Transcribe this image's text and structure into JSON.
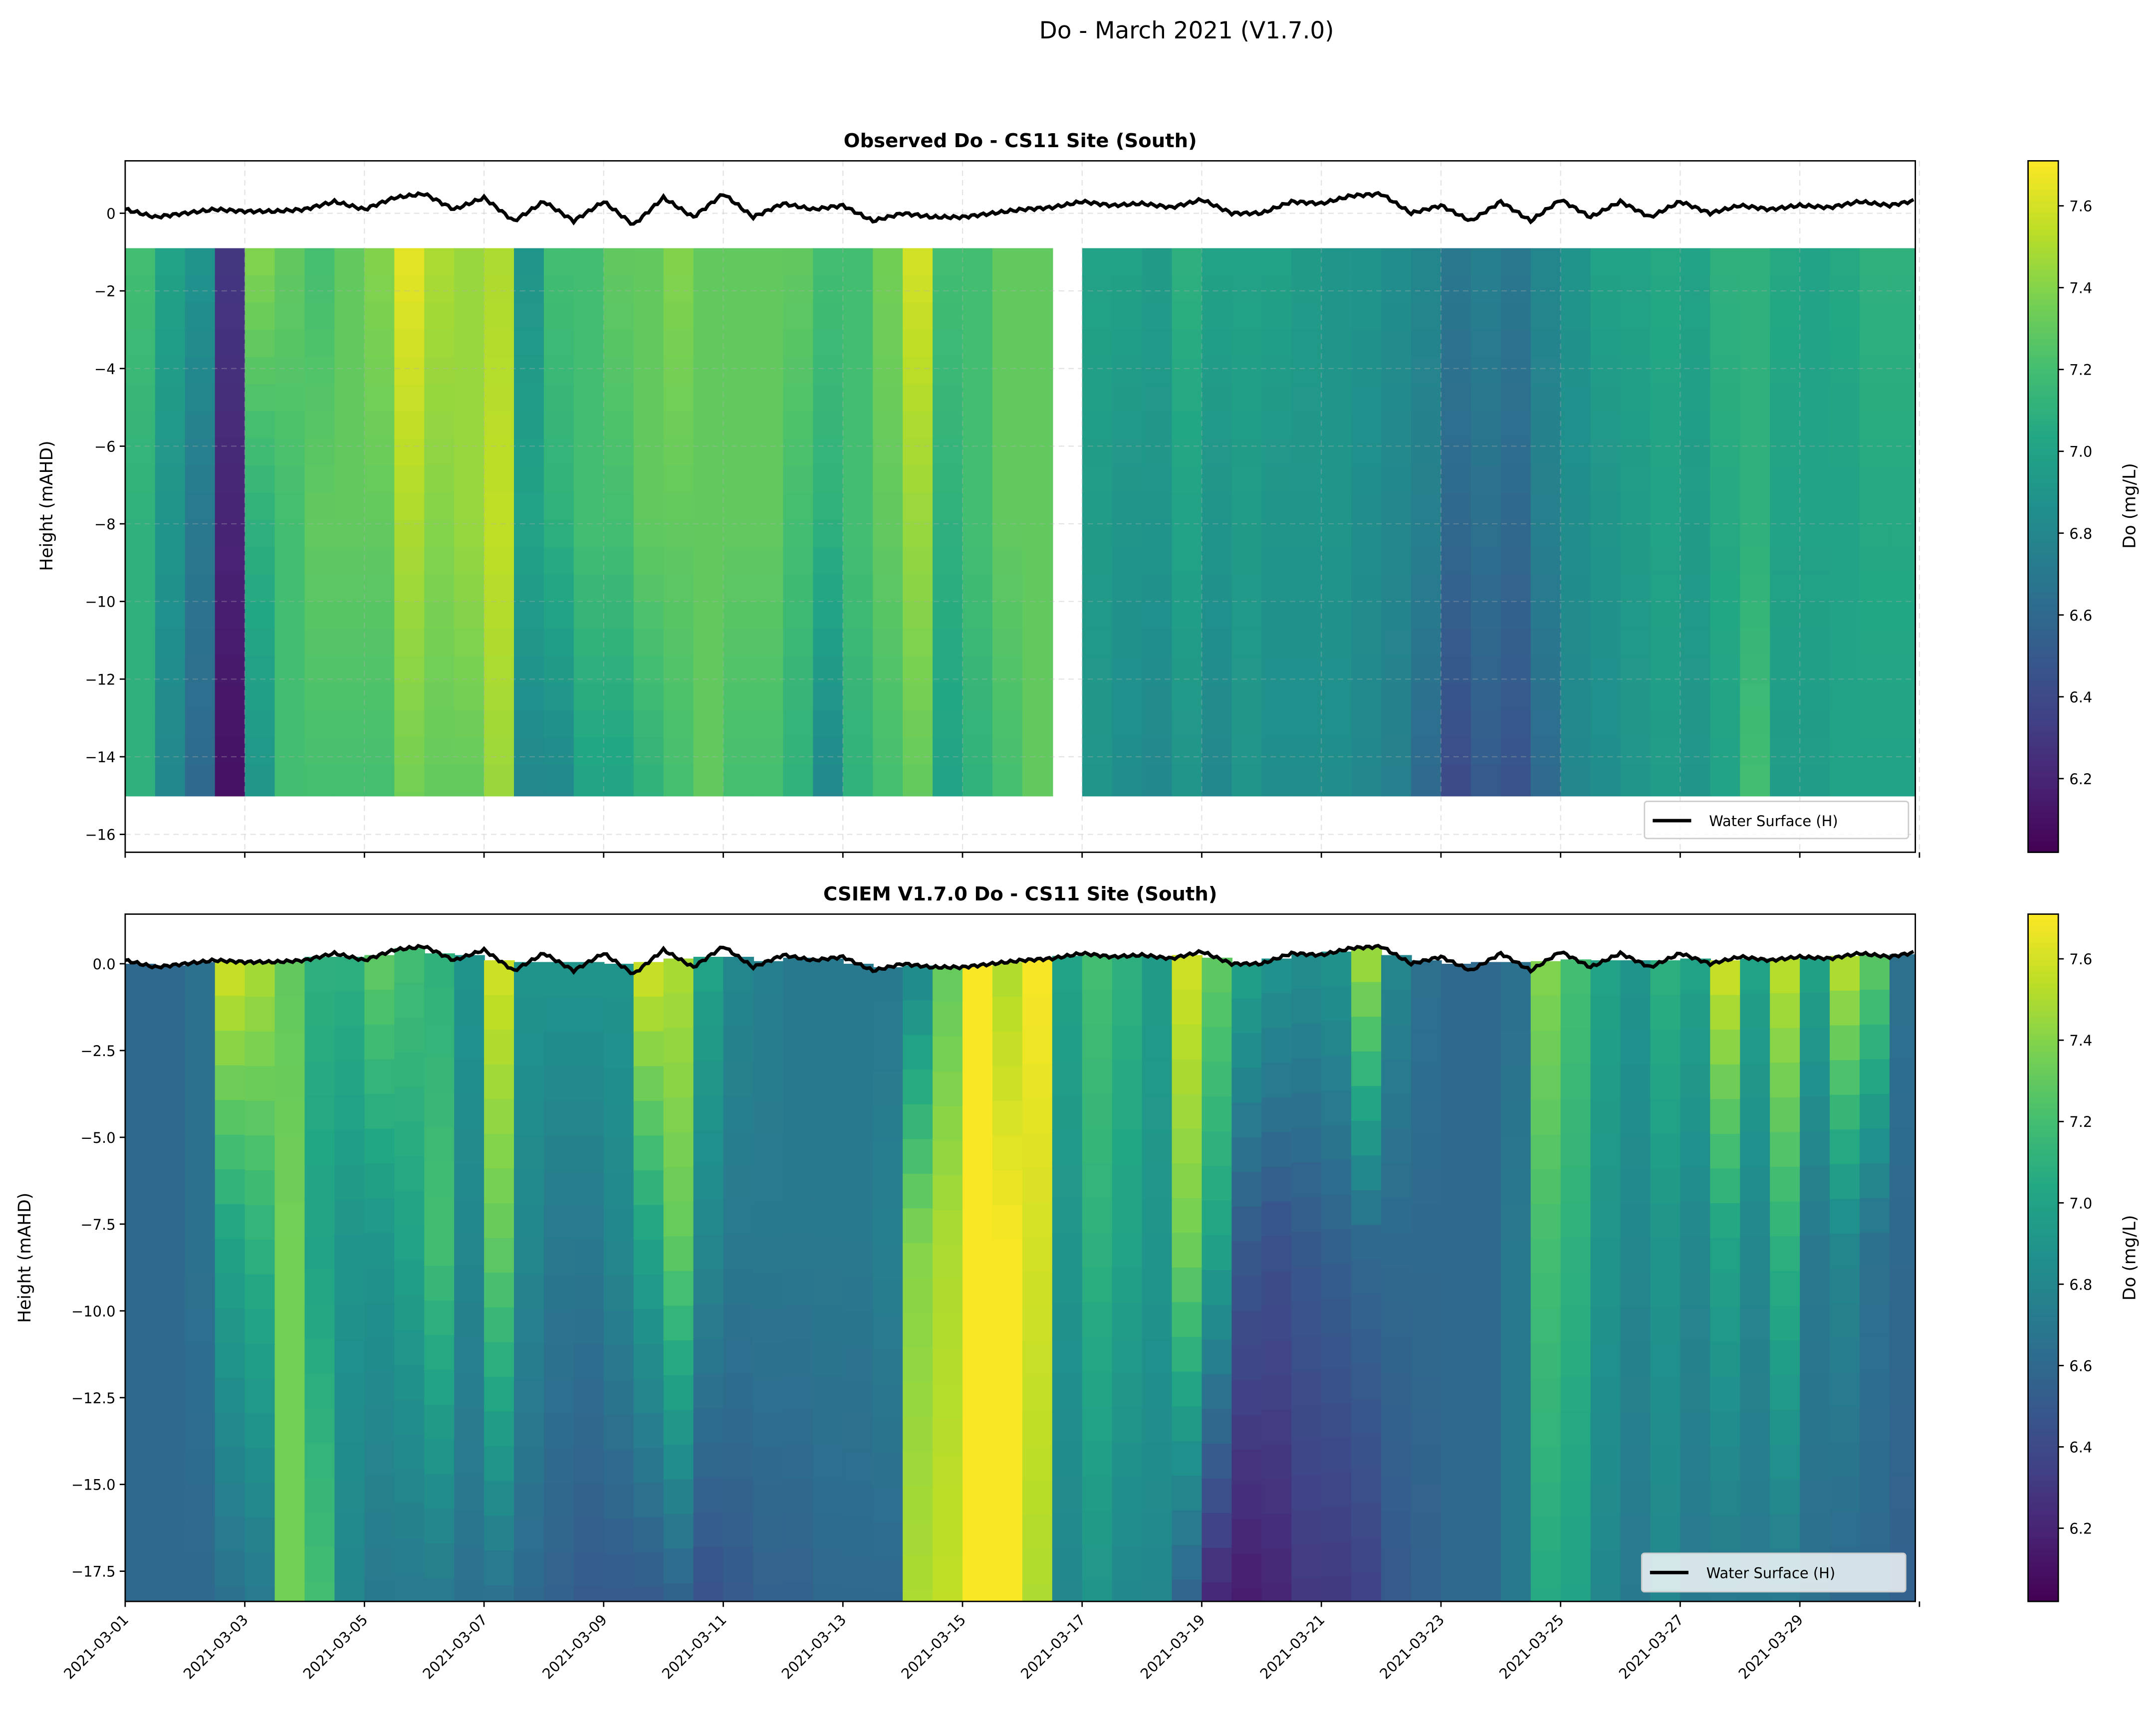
{
  "figure_title": "Do - March 2021 (V1.7.0)",
  "legend_label": "Water Surface (H)",
  "colorbar": {
    "label": "Do (mg/L)",
    "colormap": "viridis",
    "range": [
      6.02,
      7.71
    ],
    "ticks": [
      "6.2",
      "6.4",
      "6.6",
      "6.8",
      "7.0",
      "7.2",
      "7.4",
      "7.6"
    ]
  },
  "x_tick_labels": [
    "2021-03-01",
    "2021-03-03",
    "2021-03-05",
    "2021-03-07",
    "2021-03-09",
    "2021-03-11",
    "2021-03-13",
    "2021-03-15",
    "2021-03-17",
    "2021-03-19",
    "2021-03-21",
    "2021-03-23",
    "2021-03-25",
    "2021-03-27",
    "2021-03-29"
  ],
  "chart_data": [
    {
      "type": "heatmap",
      "title": "Observed Do - CS11 Site (South)",
      "ylabel": "Height (mAHD)",
      "xlim": [
        "2021-03-01",
        "2021-03-30 22:00"
      ],
      "ylim": [
        -16.46,
        1.35
      ],
      "y_ticks": [
        "0",
        "−2",
        "−4",
        "−6",
        "−8",
        "−10",
        "−12",
        "−14",
        "−16"
      ],
      "grid": true,
      "legend": "lower-right",
      "time_step_days": 0.5,
      "profile_heights": [
        -0.9,
        -8,
        -15.0
      ],
      "do_profiles": [
        [
          7.2,
          7.1,
          7.1
        ],
        [
          7.0,
          6.9,
          6.8
        ],
        [
          6.9,
          6.7,
          6.6
        ],
        [
          6.3,
          6.2,
          6.1
        ],
        [
          7.4,
          7.1,
          6.9
        ],
        [
          7.3,
          7.2,
          7.2
        ],
        [
          7.2,
          7.3,
          7.2
        ],
        [
          7.3,
          7.3,
          7.2
        ],
        [
          7.4,
          7.3,
          7.2
        ],
        [
          7.65,
          7.5,
          7.35
        ],
        [
          7.5,
          7.4,
          7.3
        ],
        [
          7.45,
          7.45,
          7.3
        ],
        [
          7.5,
          7.55,
          7.45
        ],
        [
          6.9,
          7.0,
          6.8
        ],
        [
          7.2,
          7.1,
          6.8
        ],
        [
          7.2,
          7.2,
          7.0
        ],
        [
          7.3,
          7.2,
          7.0
        ],
        [
          7.3,
          7.3,
          7.1
        ],
        [
          7.4,
          7.3,
          7.2
        ],
        [
          7.3,
          7.3,
          7.3
        ],
        [
          7.3,
          7.3,
          7.2
        ],
        [
          7.3,
          7.3,
          7.2
        ],
        [
          7.3,
          7.2,
          7.1
        ],
        [
          7.2,
          7.1,
          6.8
        ],
        [
          7.2,
          7.2,
          7.1
        ],
        [
          7.35,
          7.3,
          7.2
        ],
        [
          7.6,
          7.45,
          7.3
        ],
        [
          7.2,
          7.1,
          7.0
        ],
        [
          7.2,
          7.2,
          7.1
        ],
        [
          7.3,
          7.3,
          7.2
        ],
        [
          7.3,
          7.3,
          7.3
        ],
        null,
        [
          7.0,
          6.95,
          6.9
        ],
        [
          7.0,
          6.9,
          6.85
        ],
        [
          6.95,
          6.9,
          6.8
        ],
        [
          7.1,
          7.0,
          6.9
        ],
        [
          7.0,
          6.9,
          6.8
        ],
        [
          7.0,
          6.95,
          6.9
        ],
        [
          7.0,
          6.9,
          6.85
        ],
        [
          6.95,
          6.9,
          6.85
        ],
        [
          6.9,
          6.9,
          6.85
        ],
        [
          6.9,
          6.85,
          6.8
        ],
        [
          6.85,
          6.8,
          6.75
        ],
        [
          6.8,
          6.75,
          6.6
        ],
        [
          6.7,
          6.6,
          6.4
        ],
        [
          6.75,
          6.65,
          6.5
        ],
        [
          6.7,
          6.6,
          6.45
        ],
        [
          6.8,
          6.75,
          6.6
        ],
        [
          6.9,
          6.85,
          6.8
        ],
        [
          7.0,
          6.9,
          6.85
        ],
        [
          7.0,
          6.95,
          6.9
        ],
        [
          7.05,
          7.0,
          6.95
        ],
        [
          7.0,
          6.95,
          6.9
        ],
        [
          7.1,
          7.05,
          7.0
        ],
        [
          7.1,
          7.1,
          7.2
        ],
        [
          7.05,
          7.0,
          6.95
        ],
        [
          7.0,
          7.0,
          6.95
        ],
        [
          7.05,
          7.0,
          7.0
        ],
        [
          7.1,
          7.05,
          7.0
        ],
        [
          7.1,
          7.05,
          7.0
        ],
        [
          7.1,
          7.05,
          7.0
        ]
      ]
    },
    {
      "type": "heatmap",
      "title": "CSIEM V1.7.0 Do - CS11 Site (South)",
      "ylabel": "Height (mAHD)",
      "xlim": [
        "2021-03-01",
        "2021-03-30 22:00"
      ],
      "ylim": [
        -18.37,
        1.43
      ],
      "y_ticks": [
        "0.0",
        "−2.5",
        "−5.0",
        "−7.5",
        "−10.0",
        "−12.5",
        "−15.0",
        "−17.5"
      ],
      "grid": false,
      "legend": "lower-right",
      "time_step_days": 0.5,
      "profile_heights": [
        "surface",
        -8,
        -18.37
      ],
      "do_profiles": [
        [
          6.6,
          6.6,
          6.6
        ],
        [
          6.6,
          6.6,
          6.6
        ],
        [
          6.65,
          6.65,
          6.6
        ],
        [
          7.6,
          7.0,
          6.65
        ],
        [
          7.5,
          7.1,
          6.7
        ],
        [
          7.3,
          7.35,
          7.35
        ],
        [
          7.1,
          7.0,
          7.2
        ],
        [
          7.1,
          6.9,
          6.8
        ],
        [
          7.3,
          6.9,
          6.7
        ],
        [
          7.2,
          7.0,
          6.7
        ],
        [
          7.1,
          7.2,
          6.7
        ],
        [
          6.9,
          6.8,
          6.65
        ],
        [
          7.6,
          7.3,
          6.65
        ],
        [
          6.9,
          6.8,
          6.6
        ],
        [
          6.9,
          6.7,
          6.55
        ],
        [
          6.9,
          6.7,
          6.5
        ],
        [
          6.9,
          6.8,
          6.5
        ],
        [
          7.6,
          7.0,
          6.5
        ],
        [
          7.5,
          7.3,
          6.55
        ],
        [
          7.0,
          6.8,
          6.45
        ],
        [
          6.8,
          6.7,
          6.5
        ],
        [
          6.75,
          6.7,
          6.55
        ],
        [
          6.7,
          6.7,
          6.55
        ],
        [
          6.7,
          6.7,
          6.6
        ],
        [
          6.7,
          6.7,
          6.6
        ],
        [
          6.7,
          6.75,
          6.6
        ],
        [
          6.8,
          7.4,
          7.5
        ],
        [
          7.3,
          7.5,
          7.55
        ],
        [
          7.7,
          7.7,
          7.7
        ],
        [
          7.5,
          7.7,
          7.7
        ],
        [
          7.7,
          7.6,
          7.5
        ],
        [
          7.0,
          6.9,
          6.8
        ],
        [
          7.2,
          7.1,
          6.9
        ],
        [
          7.1,
          7.0,
          6.8
        ],
        [
          6.95,
          6.9,
          6.8
        ],
        [
          7.6,
          7.35,
          6.55
        ],
        [
          7.3,
          7.0,
          6.2
        ],
        [
          7.0,
          6.5,
          6.15
        ],
        [
          6.9,
          6.45,
          6.2
        ],
        [
          6.85,
          6.5,
          6.3
        ],
        [
          6.9,
          6.55,
          6.3
        ],
        [
          7.5,
          6.6,
          6.35
        ],
        [
          6.8,
          6.6,
          6.5
        ],
        [
          6.65,
          6.6,
          6.55
        ],
        [
          6.6,
          6.6,
          6.6
        ],
        [
          6.6,
          6.6,
          6.6
        ],
        [
          6.65,
          6.7,
          6.7
        ],
        [
          7.4,
          7.2,
          7.05
        ],
        [
          7.2,
          7.1,
          7.0
        ],
        [
          7.0,
          6.9,
          6.8
        ],
        [
          6.9,
          6.8,
          6.7
        ],
        [
          7.1,
          6.9,
          6.8
        ],
        [
          7.0,
          6.8,
          6.7
        ],
        [
          7.6,
          7.0,
          6.7
        ],
        [
          7.0,
          6.8,
          6.7
        ],
        [
          7.55,
          7.1,
          6.7
        ],
        [
          7.0,
          6.7,
          6.65
        ],
        [
          7.55,
          6.8,
          6.6
        ],
        [
          7.3,
          6.65,
          6.6
        ],
        [
          6.65,
          6.6,
          6.55
        ],
        [
          6.6,
          6.6,
          6.55
        ]
      ]
    }
  ],
  "water_surface_H": [
    0.1,
    -0.1,
    0.0,
    0.1,
    0.05,
    0.05,
    0.1,
    0.3,
    0.1,
    0.4,
    0.5,
    0.1,
    0.4,
    -0.2,
    0.3,
    -0.2,
    0.3,
    -0.3,
    0.4,
    -0.1,
    0.5,
    -0.1,
    0.25,
    0.1,
    0.2,
    -0.2,
    0.0,
    -0.1,
    -0.1,
    0.0,
    0.1,
    0.15,
    0.3,
    0.2,
    0.25,
    0.15,
    0.35,
    0.0,
    0.0,
    0.3,
    0.25,
    0.45,
    0.5,
    0.0,
    0.2,
    -0.2,
    0.3,
    -0.2,
    0.35,
    -0.1,
    0.3,
    -0.1,
    0.3,
    0.0,
    0.2,
    0.1,
    0.2,
    0.15,
    0.3,
    0.2,
    0.35,
    0.1
  ]
}
